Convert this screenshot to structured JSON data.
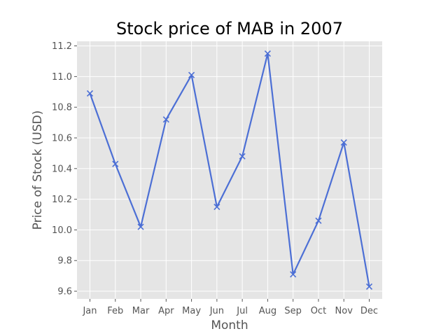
{
  "chart_data": {
    "type": "line",
    "title": "Stock price of MAB in 2007",
    "xlabel": "Month",
    "ylabel": "Price of Stock (USD)",
    "categories": [
      "Jan",
      "Feb",
      "Mar",
      "Apr",
      "May",
      "Jun",
      "Jul",
      "Aug",
      "Sep",
      "Oct",
      "Nov",
      "Dec"
    ],
    "series": [
      {
        "values": [
          10.89,
          10.43,
          10.02,
          10.72,
          11.01,
          10.15,
          10.48,
          11.15,
          9.71,
          10.06,
          10.57,
          9.63
        ],
        "marker": "x"
      }
    ],
    "ylim": [
      9.55,
      11.23
    ],
    "yticks": [
      "9.6",
      "9.8",
      "10.0",
      "10.2",
      "10.4",
      "10.6",
      "10.8",
      "11.0",
      "11.2"
    ],
    "grid": true,
    "colors": {
      "line": "#4c6fd5",
      "plot_background": "#e5e5e5",
      "grid": "#ffffff"
    }
  }
}
